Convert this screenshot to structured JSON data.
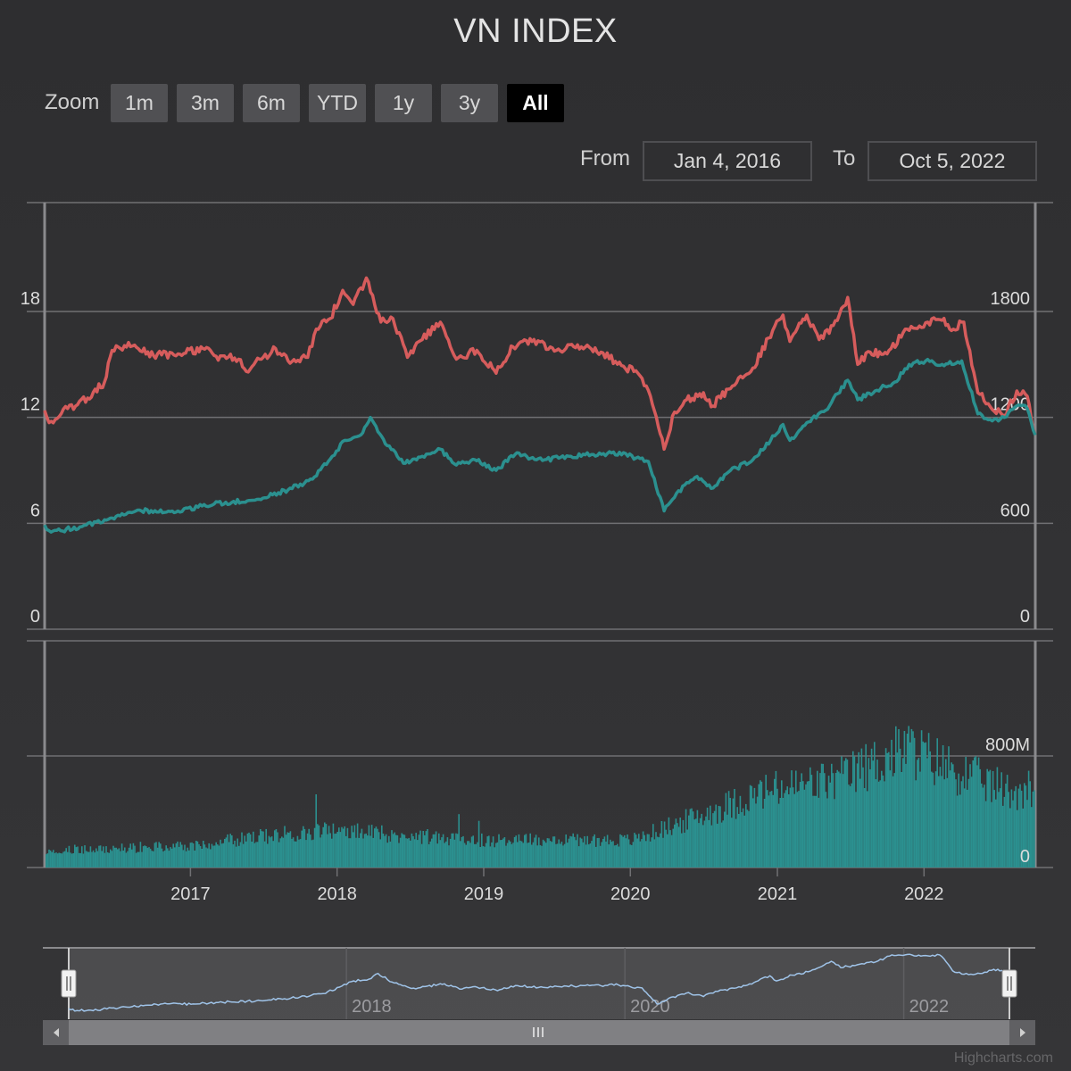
{
  "title": "VN INDEX",
  "range_selector": {
    "zoom_label": "Zoom",
    "buttons": [
      {
        "label": "1m",
        "active": false
      },
      {
        "label": "3m",
        "active": false
      },
      {
        "label": "6m",
        "active": false
      },
      {
        "label": "YTD",
        "active": false
      },
      {
        "label": "1y",
        "active": false
      },
      {
        "label": "3y",
        "active": false
      },
      {
        "label": "All",
        "active": true
      }
    ],
    "from_label": "From",
    "from_value": "Jan 4, 2016",
    "to_label": "To",
    "to_value": "Oct 5, 2022"
  },
  "credits": "Highcharts.com",
  "colors": {
    "price_line": "#d65c5c",
    "index_line": "#2b908f",
    "volume": "#2b908f",
    "navigator_line": "#9fc3e8",
    "gridline": "#707073"
  },
  "chart_data": {
    "type": "line",
    "x_range": [
      "2016-01-04",
      "2022-10-05"
    ],
    "x_ticks": [
      "2017",
      "2018",
      "2019",
      "2020",
      "2021",
      "2022"
    ],
    "left_axis": {
      "ticks": [
        "0",
        "6",
        "12",
        "18"
      ],
      "range": [
        0,
        18
      ]
    },
    "right_axis": {
      "ticks": [
        "0",
        "600",
        "1200",
        "1800"
      ],
      "range": [
        0,
        1800
      ]
    },
    "series": [
      {
        "axis": "left",
        "points": [
          [
            "2016-01-04",
            12.4
          ],
          [
            "2016-01-15",
            11.7
          ],
          [
            "2016-03-01",
            12.5
          ],
          [
            "2016-04-20",
            13.1
          ],
          [
            "2016-06-01",
            14.0
          ],
          [
            "2016-06-20",
            15.8
          ],
          [
            "2016-08-15",
            16.1
          ],
          [
            "2016-10-01",
            15.5
          ],
          [
            "2016-12-01",
            15.6
          ],
          [
            "2017-02-01",
            15.9
          ],
          [
            "2017-03-01",
            15.5
          ],
          [
            "2017-05-01",
            15.3
          ],
          [
            "2017-05-20",
            14.6
          ],
          [
            "2017-07-01",
            15.4
          ],
          [
            "2017-08-01",
            15.9
          ],
          [
            "2017-09-01",
            15.2
          ],
          [
            "2017-10-20",
            15.4
          ],
          [
            "2017-11-10",
            17.0
          ],
          [
            "2017-12-15",
            17.6
          ],
          [
            "2018-01-15",
            19.2
          ],
          [
            "2018-02-10",
            18.4
          ],
          [
            "2018-03-15",
            19.9
          ],
          [
            "2018-04-20",
            17.4
          ],
          [
            "2018-05-20",
            17.6
          ],
          [
            "2018-06-25",
            15.4
          ],
          [
            "2018-08-01",
            16.4
          ],
          [
            "2018-09-15",
            17.4
          ],
          [
            "2018-10-25",
            15.3
          ],
          [
            "2018-12-15",
            15.8
          ],
          [
            "2019-02-01",
            14.5
          ],
          [
            "2019-03-15",
            16.0
          ],
          [
            "2019-05-01",
            16.3
          ],
          [
            "2019-07-01",
            15.8
          ],
          [
            "2019-09-01",
            16.0
          ],
          [
            "2019-10-20",
            15.7
          ],
          [
            "2019-12-15",
            14.9
          ],
          [
            "2020-01-20",
            14.5
          ],
          [
            "2020-02-20",
            13.2
          ],
          [
            "2020-03-25",
            10.2
          ],
          [
            "2020-04-20",
            12.3
          ],
          [
            "2020-05-20",
            13.0
          ],
          [
            "2020-07-01",
            13.4
          ],
          [
            "2020-07-20",
            12.6
          ],
          [
            "2020-09-01",
            13.6
          ],
          [
            "2020-11-01",
            14.8
          ],
          [
            "2020-12-10",
            16.5
          ],
          [
            "2021-01-15",
            17.8
          ],
          [
            "2021-02-01",
            16.3
          ],
          [
            "2021-03-15",
            17.8
          ],
          [
            "2021-04-15",
            16.4
          ],
          [
            "2021-05-20",
            17.2
          ],
          [
            "2021-06-25",
            18.8
          ],
          [
            "2021-07-20",
            15.0
          ],
          [
            "2021-08-20",
            15.7
          ],
          [
            "2021-10-01",
            15.6
          ],
          [
            "2021-11-20",
            17.0
          ],
          [
            "2022-01-10",
            17.4
          ],
          [
            "2022-02-15",
            17.5
          ],
          [
            "2022-03-15",
            17.0
          ],
          [
            "2022-04-10",
            17.4
          ],
          [
            "2022-05-15",
            13.4
          ],
          [
            "2022-06-15",
            12.6
          ],
          [
            "2022-07-20",
            12.1
          ],
          [
            "2022-08-20",
            13.5
          ],
          [
            "2022-09-15",
            13.2
          ],
          [
            "2022-10-05",
            11.0
          ]
        ]
      },
      {
        "axis": "left",
        "points": [
          [
            "2016-01-04",
            5.9
          ],
          [
            "2016-01-20",
            5.5
          ],
          [
            "2016-04-01",
            5.8
          ],
          [
            "2016-06-01",
            6.2
          ],
          [
            "2016-09-01",
            6.7
          ],
          [
            "2016-12-01",
            6.7
          ],
          [
            "2017-03-01",
            7.1
          ],
          [
            "2017-06-01",
            7.3
          ],
          [
            "2017-09-01",
            7.9
          ],
          [
            "2017-11-01",
            8.5
          ],
          [
            "2017-12-20",
            9.8
          ],
          [
            "2018-01-20",
            10.7
          ],
          [
            "2018-03-01",
            11.0
          ],
          [
            "2018-03-25",
            12.0
          ],
          [
            "2018-05-01",
            10.5
          ],
          [
            "2018-06-20",
            9.4
          ],
          [
            "2018-08-01",
            9.8
          ],
          [
            "2018-09-15",
            10.2
          ],
          [
            "2018-10-25",
            9.3
          ],
          [
            "2018-12-10",
            9.6
          ],
          [
            "2019-02-01",
            9.0
          ],
          [
            "2019-03-20",
            9.9
          ],
          [
            "2019-06-01",
            9.6
          ],
          [
            "2019-08-01",
            9.8
          ],
          [
            "2019-10-01",
            9.9
          ],
          [
            "2019-12-15",
            10.0
          ],
          [
            "2020-01-15",
            9.7
          ],
          [
            "2020-02-15",
            9.5
          ],
          [
            "2020-03-25",
            6.7
          ],
          [
            "2020-04-25",
            7.7
          ],
          [
            "2020-06-10",
            8.6
          ],
          [
            "2020-07-25",
            8.0
          ],
          [
            "2020-09-01",
            8.9
          ],
          [
            "2020-11-01",
            9.6
          ],
          [
            "2020-12-15",
            10.7
          ],
          [
            "2021-01-15",
            11.6
          ],
          [
            "2021-02-01",
            10.7
          ],
          [
            "2021-03-15",
            11.7
          ],
          [
            "2021-05-01",
            12.4
          ],
          [
            "2021-06-25",
            14.1
          ],
          [
            "2021-07-20",
            13.0
          ],
          [
            "2021-09-01",
            13.5
          ],
          [
            "2021-10-20",
            14.0
          ],
          [
            "2021-11-25",
            15.0
          ],
          [
            "2022-01-05",
            15.2
          ],
          [
            "2022-02-15",
            15.0
          ],
          [
            "2022-04-05",
            15.2
          ],
          [
            "2022-05-15",
            12.2
          ],
          [
            "2022-06-20",
            11.8
          ],
          [
            "2022-07-20",
            12.0
          ],
          [
            "2022-08-25",
            12.7
          ],
          [
            "2022-09-15",
            12.5
          ],
          [
            "2022-10-05",
            11.0
          ]
        ]
      }
    ],
    "volume": {
      "type": "column",
      "axis_ticks": [
        "0",
        "800M"
      ],
      "range": [
        0,
        800
      ],
      "unit": "M",
      "profile": [
        [
          "2016-01-04",
          130
        ],
        [
          "2016-07-01",
          140
        ],
        [
          "2017-01-01",
          160
        ],
        [
          "2017-06-01",
          220
        ],
        [
          "2017-12-01",
          280
        ],
        [
          "2018-06-01",
          240
        ],
        [
          "2019-01-01",
          200
        ],
        [
          "2019-07-01",
          210
        ],
        [
          "2020-01-01",
          200
        ],
        [
          "2020-06-01",
          360
        ],
        [
          "2020-12-01",
          560
        ],
        [
          "2021-06-01",
          650
        ],
        [
          "2021-11-20",
          880
        ],
        [
          "2022-04-01",
          700
        ],
        [
          "2022-08-01",
          560
        ],
        [
          "2022-10-05",
          600
        ]
      ]
    },
    "navigator": {
      "x_ticks": [
        "2018",
        "2020",
        "2022"
      ]
    }
  }
}
